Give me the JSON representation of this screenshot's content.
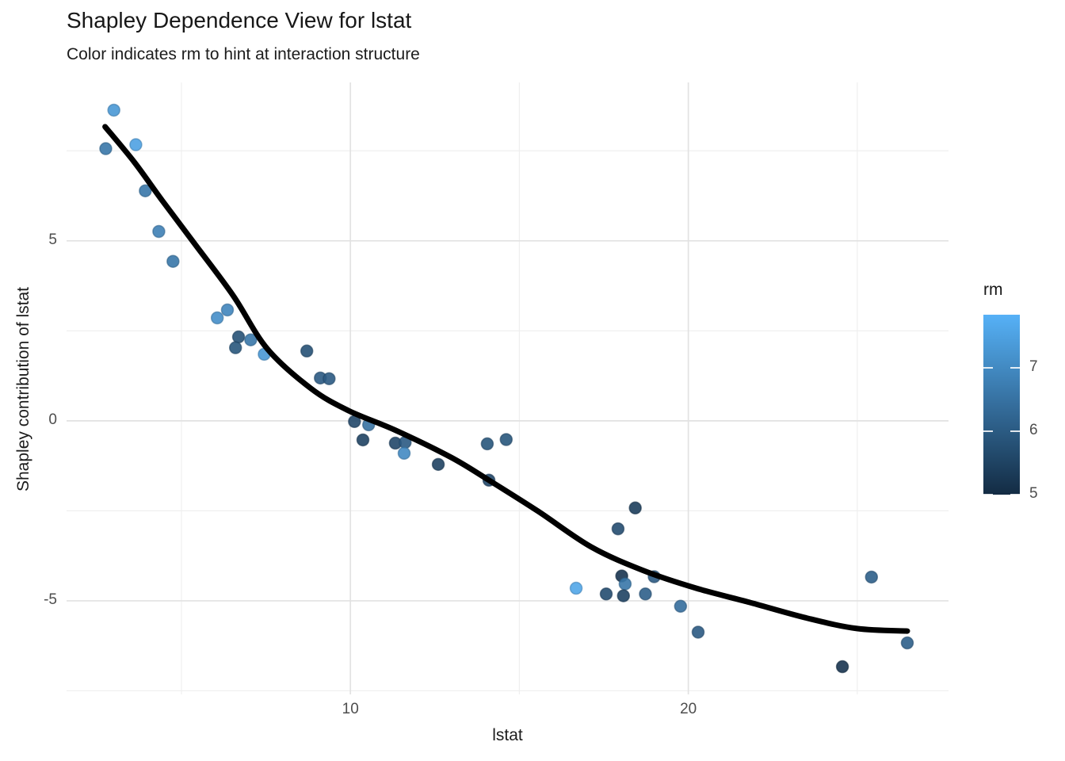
{
  "header": {
    "title": "Shapley Dependence View for lstat",
    "subtitle": "Color indicates rm to hint at interaction structure"
  },
  "chart_data": {
    "type": "scatter",
    "title": "Shapley Dependence View for lstat",
    "subtitle": "Color indicates rm to hint at interaction structure",
    "xlabel": "lstat",
    "ylabel": "Shapley contribution of lstat",
    "x_domain": [
      1.6,
      27.7
    ],
    "y_domain": [
      -7.6,
      9.4
    ],
    "grid": true,
    "legend_position": "right",
    "x_ticks": [
      {
        "value": 10,
        "label": "10"
      },
      {
        "value": 20,
        "label": "20"
      }
    ],
    "x_minor_ticks": [
      5,
      15,
      25
    ],
    "y_ticks": [
      {
        "value": 5,
        "label": "5"
      },
      {
        "value": 0,
        "label": "0"
      },
      {
        "value": -5,
        "label": "-5"
      }
    ],
    "y_minor_ticks": [
      7.5,
      2.5,
      -2.5,
      -7.5
    ],
    "color_scale": {
      "title": "rm",
      "low_color": "#132B43",
      "high_color": "#56B1F7",
      "domain": [
        5.0,
        7.83
      ],
      "ticks": [
        {
          "value": 7,
          "label": "7"
        },
        {
          "value": 6,
          "label": "6"
        },
        {
          "value": 5,
          "label": "5"
        }
      ]
    },
    "smooth_line_color": "#000000",
    "points": [
      {
        "lstat": 3.0,
        "shap": 8.63,
        "rm": 7.3
      },
      {
        "lstat": 2.76,
        "shap": 7.56,
        "rm": 6.6
      },
      {
        "lstat": 3.65,
        "shap": 7.67,
        "rm": 7.5
      },
      {
        "lstat": 3.93,
        "shap": 6.39,
        "rm": 6.6
      },
      {
        "lstat": 4.33,
        "shap": 5.26,
        "rm": 6.8
      },
      {
        "lstat": 4.75,
        "shap": 4.43,
        "rm": 6.6
      },
      {
        "lstat": 6.06,
        "shap": 2.86,
        "rm": 7.1
      },
      {
        "lstat": 6.36,
        "shap": 3.08,
        "rm": 6.9
      },
      {
        "lstat": 6.69,
        "shap": 2.33,
        "rm": 5.8
      },
      {
        "lstat": 6.6,
        "shap": 2.03,
        "rm": 5.9
      },
      {
        "lstat": 7.05,
        "shap": 2.25,
        "rm": 6.6
      },
      {
        "lstat": 7.45,
        "shap": 1.85,
        "rm": 7.3
      },
      {
        "lstat": 8.71,
        "shap": 1.94,
        "rm": 5.8
      },
      {
        "lstat": 9.11,
        "shap": 1.19,
        "rm": 6.0
      },
      {
        "lstat": 9.37,
        "shap": 1.17,
        "rm": 6.0
      },
      {
        "lstat": 10.12,
        "shap": -0.02,
        "rm": 5.6
      },
      {
        "lstat": 10.54,
        "shap": -0.11,
        "rm": 6.5
      },
      {
        "lstat": 10.37,
        "shap": -0.53,
        "rm": 5.5
      },
      {
        "lstat": 11.33,
        "shap": -0.62,
        "rm": 5.6
      },
      {
        "lstat": 11.62,
        "shap": -0.6,
        "rm": 6.0
      },
      {
        "lstat": 11.59,
        "shap": -0.9,
        "rm": 7.0
      },
      {
        "lstat": 12.6,
        "shap": -1.21,
        "rm": 5.5
      },
      {
        "lstat": 14.05,
        "shap": -0.64,
        "rm": 5.9
      },
      {
        "lstat": 14.61,
        "shap": -0.52,
        "rm": 5.9
      },
      {
        "lstat": 14.1,
        "shap": -1.65,
        "rm": 5.6
      },
      {
        "lstat": 18.43,
        "shap": -2.42,
        "rm": 5.4
      },
      {
        "lstat": 17.92,
        "shap": -3.0,
        "rm": 5.7
      },
      {
        "lstat": 18.03,
        "shap": -4.31,
        "rm": 5.2
      },
      {
        "lstat": 18.13,
        "shap": -4.53,
        "rm": 6.6
      },
      {
        "lstat": 18.99,
        "shap": -4.33,
        "rm": 6.0
      },
      {
        "lstat": 16.68,
        "shap": -4.65,
        "rm": 7.6
      },
      {
        "lstat": 17.57,
        "shap": -4.81,
        "rm": 5.7
      },
      {
        "lstat": 18.08,
        "shap": -4.86,
        "rm": 5.5
      },
      {
        "lstat": 18.73,
        "shap": -4.81,
        "rm": 6.1
      },
      {
        "lstat": 19.77,
        "shap": -5.15,
        "rm": 6.4
      },
      {
        "lstat": 20.29,
        "shap": -5.87,
        "rm": 6.0
      },
      {
        "lstat": 25.42,
        "shap": -4.34,
        "rm": 6.1
      },
      {
        "lstat": 26.48,
        "shap": -6.17,
        "rm": 6.1
      },
      {
        "lstat": 24.56,
        "shap": -6.83,
        "rm": 5.2
      }
    ],
    "smooth_line": [
      [
        2.74,
        8.17
      ],
      [
        3.61,
        7.18
      ],
      [
        4.43,
        6.12
      ],
      [
        5.43,
        4.87
      ],
      [
        6.53,
        3.48
      ],
      [
        7.54,
        2.0
      ],
      [
        8.83,
        0.9
      ],
      [
        9.93,
        0.29
      ],
      [
        11.33,
        -0.26
      ],
      [
        12.97,
        -1.01
      ],
      [
        14.1,
        -1.65
      ],
      [
        15.55,
        -2.51
      ],
      [
        17.12,
        -3.5
      ],
      [
        18.67,
        -4.16
      ],
      [
        20.23,
        -4.65
      ],
      [
        21.8,
        -5.04
      ],
      [
        23.51,
        -5.48
      ],
      [
        24.99,
        -5.77
      ],
      [
        26.48,
        -5.84
      ]
    ]
  }
}
